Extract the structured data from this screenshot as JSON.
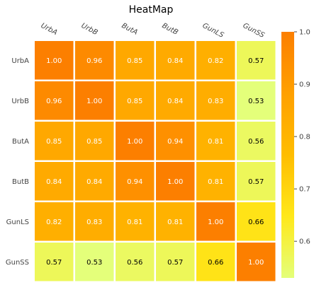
{
  "chart_data": {
    "type": "heatmap",
    "title": "HeatMap",
    "x_labels": [
      "UrbA",
      "UrbB",
      "ButA",
      "ButB",
      "GunLS",
      "GunSS"
    ],
    "y_labels": [
      "UrbA",
      "UrbB",
      "ButA",
      "ButB",
      "GunLS",
      "GunSS"
    ],
    "values": [
      [
        1.0,
        0.96,
        0.85,
        0.84,
        0.82,
        0.57
      ],
      [
        0.96,
        1.0,
        0.85,
        0.84,
        0.83,
        0.53
      ],
      [
        0.85,
        0.85,
        1.0,
        0.94,
        0.81,
        0.56
      ],
      [
        0.84,
        0.84,
        0.94,
        1.0,
        0.81,
        0.57
      ],
      [
        0.82,
        0.83,
        0.81,
        0.81,
        1.0,
        0.66
      ],
      [
        0.57,
        0.53,
        0.56,
        0.57,
        0.66,
        1.0
      ]
    ],
    "value_format": "2 decimals",
    "colormap": "Wistia",
    "vmin": 0.53,
    "vmax": 1.0,
    "colorbar": {
      "ticks": [
        0.6,
        0.7,
        0.8,
        0.9,
        1.0
      ],
      "tick_labels": [
        "0.6",
        "0.7",
        "0.8",
        "0.9",
        "1.0"
      ],
      "placement": "right"
    },
    "colormap_stops": [
      {
        "value": 0.0,
        "color": "#e4ff7a"
      },
      {
        "value": 0.25,
        "color": "#ffe81a"
      },
      {
        "value": 0.5,
        "color": "#ffbd00"
      },
      {
        "value": 0.75,
        "color": "#ffa000"
      },
      {
        "value": 1.0,
        "color": "#fc7f00"
      }
    ],
    "label_colors": {
      "dark_cells": "#ffffff",
      "light_cells": "#000000"
    },
    "grid_line_color": "#ffffff",
    "background_color": "#ffffff"
  }
}
